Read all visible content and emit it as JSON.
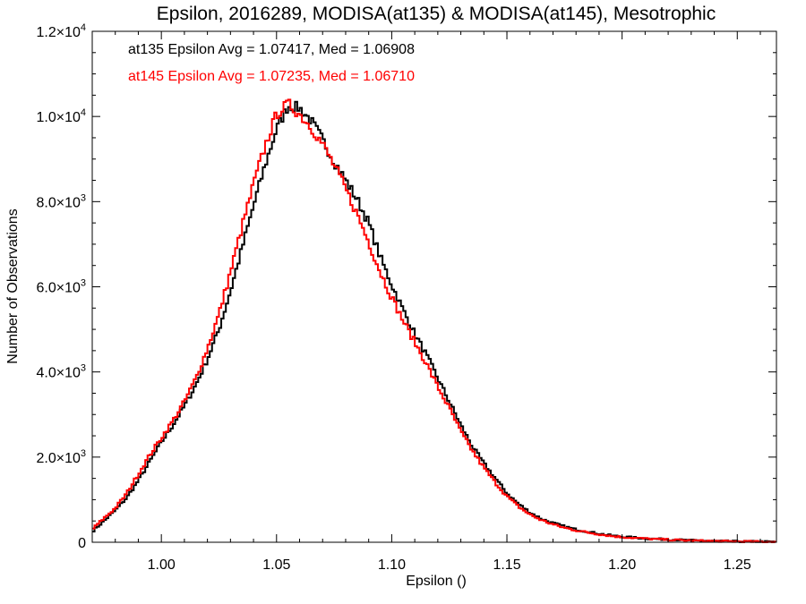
{
  "chart_data": {
    "type": "line",
    "style": "step-histogram",
    "title": "Epsilon, 2016289, MODISA(at135) & MODISA(at145), Mesotrophic",
    "xlabel": "Epsilon ()",
    "ylabel": "Number of Observations",
    "xlim": [
      0.97,
      1.267
    ],
    "ylim": [
      0,
      12000
    ],
    "grid": false,
    "x_ticks": [
      {
        "value": 1.0,
        "label": "1.00"
      },
      {
        "value": 1.05,
        "label": "1.05"
      },
      {
        "value": 1.1,
        "label": "1.10"
      },
      {
        "value": 1.15,
        "label": "1.15"
      },
      {
        "value": 1.2,
        "label": "1.20"
      },
      {
        "value": 1.25,
        "label": "1.25"
      }
    ],
    "y_ticks": [
      {
        "value": 0,
        "mant": "0",
        "exp": ""
      },
      {
        "value": 2000,
        "mant": "2.0×10",
        "exp": "3"
      },
      {
        "value": 4000,
        "mant": "4.0×10",
        "exp": "3"
      },
      {
        "value": 6000,
        "mant": "6.0×10",
        "exp": "3"
      },
      {
        "value": 8000,
        "mant": "8.0×10",
        "exp": "3"
      },
      {
        "value": 10000,
        "mant": "1.0×10",
        "exp": "4"
      },
      {
        "value": 12000,
        "mant": "1.2×10",
        "exp": "4"
      }
    ],
    "annotations": [
      {
        "text": "at135 Epsilon Avg = 1.07417, Med = 1.06908",
        "color": "#000000"
      },
      {
        "text": "at145 Epsilon Avg = 1.07235, Med = 1.06710",
        "color": "#ff0000"
      }
    ],
    "series": [
      {
        "color": "#000000",
        "x": [
          0.97,
          0.975,
          0.98,
          0.985,
          0.99,
          0.995,
          1.0,
          1.005,
          1.01,
          1.015,
          1.02,
          1.025,
          1.03,
          1.035,
          1.04,
          1.045,
          1.05,
          1.055,
          1.06,
          1.065,
          1.07,
          1.075,
          1.08,
          1.085,
          1.09,
          1.095,
          1.1,
          1.105,
          1.11,
          1.115,
          1.12,
          1.125,
          1.13,
          1.135,
          1.14,
          1.145,
          1.15,
          1.155,
          1.16,
          1.165,
          1.17,
          1.175,
          1.18,
          1.185,
          1.19,
          1.195,
          1.2,
          1.21,
          1.22,
          1.23,
          1.24,
          1.25,
          1.26,
          1.267
        ],
        "y": [
          250,
          500,
          750,
          1050,
          1450,
          1900,
          2350,
          2750,
          3200,
          3700,
          4300,
          5000,
          5900,
          6900,
          7900,
          8850,
          9700,
          10250,
          10200,
          9900,
          9450,
          8950,
          8500,
          8050,
          7500,
          6700,
          6050,
          5450,
          4900,
          4400,
          3850,
          3300,
          2750,
          2250,
          1850,
          1500,
          1150,
          900,
          700,
          550,
          450,
          370,
          300,
          250,
          200,
          160,
          130,
          90,
          65,
          45,
          30,
          20,
          15,
          10
        ]
      },
      {
        "color": "#ff0000",
        "x": [
          0.97,
          0.975,
          0.98,
          0.985,
          0.99,
          0.995,
          1.0,
          1.005,
          1.01,
          1.015,
          1.02,
          1.025,
          1.03,
          1.035,
          1.04,
          1.045,
          1.05,
          1.055,
          1.06,
          1.065,
          1.07,
          1.075,
          1.08,
          1.085,
          1.09,
          1.095,
          1.1,
          1.105,
          1.11,
          1.115,
          1.12,
          1.125,
          1.13,
          1.135,
          1.14,
          1.145,
          1.15,
          1.155,
          1.16,
          1.165,
          1.17,
          1.175,
          1.18,
          1.185,
          1.19,
          1.195,
          1.2,
          1.21,
          1.22,
          1.23,
          1.24,
          1.25,
          1.26,
          1.267
        ],
        "y": [
          300,
          560,
          800,
          1150,
          1600,
          2050,
          2450,
          2850,
          3300,
          3850,
          4550,
          5350,
          6350,
          7400,
          8400,
          9300,
          10050,
          10300,
          10050,
          9750,
          9350,
          8850,
          8300,
          7700,
          7050,
          6350,
          5750,
          5200,
          4700,
          4200,
          3650,
          3150,
          2600,
          2150,
          1750,
          1400,
          1080,
          840,
          650,
          520,
          420,
          340,
          280,
          230,
          190,
          150,
          120,
          85,
          60,
          40,
          28,
          18,
          12,
          8
        ]
      }
    ]
  }
}
